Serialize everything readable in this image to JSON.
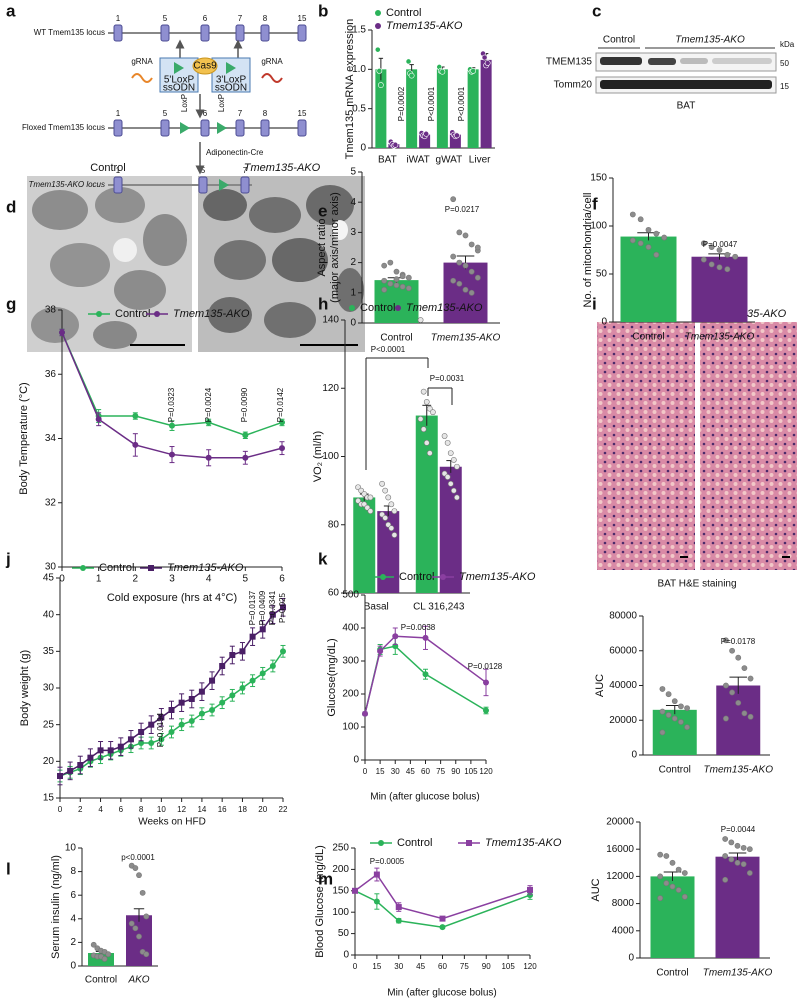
{
  "panel_labels": [
    "a",
    "b",
    "c",
    "d",
    "e",
    "f",
    "g",
    "h",
    "i",
    "j",
    "k",
    "l",
    "m"
  ],
  "diagram": {
    "wt_label": "WT Tmem135 locus",
    "wt_exons": [
      "1",
      "5",
      "6",
      "7",
      "8",
      "15"
    ],
    "grna_left": "gRNA",
    "grna_right": "gRNA",
    "cas9": "Cas9",
    "left_oligo": [
      "5'LoxP",
      "ssODN"
    ],
    "right_oligo": [
      "3'LoxP",
      "ssODN"
    ],
    "floxed_label": "Floxed Tmem135 locus",
    "floxed_exons": [
      "1",
      "5",
      "6",
      "7",
      "8",
      "15"
    ],
    "loxp": [
      "LoxP",
      "LoxP"
    ],
    "cre": "Adiponectin-Cre",
    "ako_label": "Tmem135-AKO locus",
    "ako_exons": [
      "1",
      "5",
      "7"
    ]
  },
  "blot": {
    "groups": [
      "Control",
      "Tmem135-AKO"
    ],
    "proteins": [
      "TMEM135",
      "Tomm20"
    ],
    "unit": "kDa",
    "markers": [
      "50",
      "15"
    ],
    "tissue": "BAT"
  },
  "em_images": {
    "labels": [
      "Control",
      "Tmem135-AKO"
    ]
  },
  "histology": {
    "labels": [
      "Control",
      "Tmem135-AKO"
    ],
    "caption": "BAT H&E staining"
  },
  "chart_data": [
    {
      "type": "bar",
      "ylabel": "Tmem135 mRNA expression",
      "categories": [
        "BAT",
        "iWAT",
        "gWAT",
        "Liver"
      ],
      "ylim": [
        0,
        1.5
      ],
      "yticks": [
        0,
        0.5,
        {
          "value": 1,
          "label": "1.0"
        },
        1.5
      ],
      "series": [
        {
          "name": "Control",
          "color": "#2bb35a",
          "values": [
            1.0,
            1.0,
            1.0,
            1.0
          ],
          "errors": [
            0.14,
            0.06,
            0.03,
            0.02
          ],
          "points": [
            [
              1.25,
              0.98,
              0.8
            ],
            [
              1.1,
              0.95,
              0.92
            ],
            [
              1.03,
              0.98,
              0.97
            ],
            [
              1.0,
              0.97,
              0.98
            ]
          ]
        },
        {
          "name": "Tmem135-AKO",
          "color": "#6b2d86",
          "values": [
            0.05,
            0.17,
            0.17,
            1.12
          ],
          "errors": [
            0.02,
            0.02,
            0.02,
            0.08
          ],
          "points": [
            [
              0.08,
              0.05,
              0.03,
              0.04
            ],
            [
              0.19,
              0.16,
              0.15,
              0.18
            ],
            [
              0.2,
              0.17,
              0.15,
              0.16
            ],
            [
              1.2,
              1.15,
              1.05,
              1.08
            ]
          ]
        }
      ],
      "annotations": [
        "P=0.0002",
        "P<0.0001",
        "P<0.0001"
      ]
    },
    {
      "type": "bar",
      "ylabel": [
        "Aspect ratio",
        "(major axis/minor axis)"
      ],
      "categories": [
        "Control",
        "Tmem135-AKO"
      ],
      "colors": [
        "#2bb35a",
        "#6b2d86"
      ],
      "point_color": "#8c8c8c",
      "values": [
        1.42,
        2.0
      ],
      "errors": [
        0.08,
        0.22
      ],
      "points": [
        [
          1.9,
          2.0,
          1.7,
          1.6,
          1.5,
          1.4,
          1.3,
          1.25,
          1.2,
          1.15,
          1.1,
          1.3,
          1.45,
          1.55
        ],
        [
          4.1,
          3.0,
          2.9,
          2.6,
          2.4,
          2.2,
          2.0,
          1.9,
          1.7,
          1.5,
          1.4,
          1.3,
          1.1,
          1.0,
          2.5
        ]
      ],
      "ylim": [
        0,
        5
      ],
      "yticks": [
        0,
        1,
        2,
        3,
        4,
        5
      ],
      "annotations": [
        "P=0.0217"
      ]
    },
    {
      "type": "bar",
      "ylabel": "No. of mitochondria/cell",
      "categories": [
        "Control",
        "Tmem135-AKO"
      ],
      "colors": [
        "#2bb35a",
        "#6b2d86"
      ],
      "point_color": "#8c8c8c",
      "values": [
        89,
        68
      ],
      "errors": [
        4,
        3
      ],
      "points": [
        [
          112,
          107,
          96,
          92,
          88,
          85,
          82,
          78,
          70
        ],
        [
          82,
          78,
          75,
          70,
          68,
          65,
          60,
          57,
          55
        ]
      ],
      "ylim": [
        0,
        150
      ],
      "yticks": [
        0,
        50,
        100,
        150
      ],
      "annotations": [
        "P=0.0047"
      ]
    },
    {
      "type": "line",
      "ylabel": "Body Temperature (°C)",
      "xlabel": "Cold exposure (hrs at 4°C)",
      "x": [
        0,
        1,
        2,
        3,
        4,
        5,
        6
      ],
      "xlim": [
        0,
        6
      ],
      "xticks": [
        0,
        1,
        2,
        3,
        4,
        5,
        6
      ],
      "ylim": [
        30,
        38
      ],
      "yticks": [
        30,
        32,
        34,
        36,
        38
      ],
      "series": [
        {
          "name": "Control",
          "color": "#2bb35a",
          "marker": "circle",
          "values": [
            37.3,
            34.7,
            34.7,
            34.4,
            34.5,
            34.1,
            34.5
          ],
          "errors": [
            0.1,
            0.2,
            0.1,
            0.15,
            0.1,
            0.1,
            0.1
          ]
        },
        {
          "name": "Tmem135-AKO",
          "color": "#6b2d86",
          "marker": "circle",
          "values": [
            37.3,
            34.6,
            33.8,
            33.5,
            33.4,
            33.4,
            33.7
          ],
          "errors": [
            0.1,
            0.2,
            0.35,
            0.25,
            0.25,
            0.2,
            0.2
          ]
        }
      ],
      "annotations": [
        "P=0.0323",
        "P=0.0024",
        "P=0.0090",
        "P=0.0142"
      ]
    },
    {
      "type": "bar",
      "ylabel": "VO₂ (ml/h)",
      "categories": [
        "Basal",
        "CL 316,243"
      ],
      "point_color": "#e6e6e6",
      "ylim": [
        60,
        140
      ],
      "yticks": [
        60,
        80,
        100,
        120,
        140
      ],
      "series": [
        {
          "name": "Control",
          "color": "#2bb35a",
          "values": [
            88,
            112
          ],
          "errors": [
            1,
            3
          ],
          "points": [
            [
              91,
              90,
              89,
              88,
              88,
              87,
              86,
              86,
              85,
              84
            ],
            [
              140,
              119,
              116,
              114,
              113,
              111,
              108,
              104,
              101
            ]
          ]
        },
        {
          "name": "Tmem135-AKO",
          "color": "#6b2d86",
          "values": [
            84,
            97
          ],
          "errors": [
            1.5,
            1.8
          ],
          "points": [
            [
              92,
              90,
              88,
              86,
              84,
              83,
              82,
              80,
              79,
              77
            ],
            [
              106,
              104,
              101,
              99,
              97,
              95,
              94,
              92,
              90,
              88
            ]
          ]
        }
      ],
      "annotations": [
        "P<0.0001",
        "P=0.0031"
      ]
    },
    {
      "type": "line",
      "ylabel": "Body weight  (g)",
      "xlabel": "Weeks on HFD",
      "x": [
        0,
        1,
        2,
        3,
        4,
        5,
        6,
        7,
        8,
        9,
        10,
        11,
        12,
        13,
        14,
        15,
        16,
        17,
        18,
        19,
        20,
        21,
        22
      ],
      "xlim": [
        0,
        22
      ],
      "xticks": [
        0,
        2,
        4,
        6,
        8,
        10,
        12,
        14,
        16,
        18,
        20,
        22
      ],
      "ylim": [
        15,
        45
      ],
      "yticks": [
        15,
        20,
        25,
        30,
        35,
        40,
        45
      ],
      "series": [
        {
          "name": "Control",
          "color": "#2bb35a",
          "marker": "circle",
          "values": [
            18,
            18.5,
            19,
            20,
            20.5,
            21,
            21.5,
            22,
            22.5,
            22.5,
            23,
            24,
            25,
            25.5,
            26.5,
            27,
            28,
            29,
            30,
            31,
            32,
            33,
            35
          ],
          "errors": [
            0.8,
            0.8,
            0.8,
            0.8,
            0.8,
            0.8,
            0.8,
            0.8,
            0.8,
            0.8,
            0.8,
            0.8,
            0.8,
            0.8,
            0.8,
            0.8,
            0.8,
            0.8,
            0.8,
            0.8,
            0.8,
            0.8,
            0.8
          ]
        },
        {
          "name": "Tmem135-AKO",
          "color": "#4a1f66",
          "marker": "square",
          "values": [
            18,
            18.7,
            19.5,
            20.5,
            21.5,
            21.5,
            22,
            23,
            24,
            25,
            26,
            27,
            28,
            28.5,
            29.5,
            31,
            33,
            34.5,
            35,
            37,
            38,
            40,
            41
          ],
          "errors": [
            1.2,
            1.2,
            1.2,
            1.2,
            1.2,
            1.2,
            1.2,
            1.2,
            1.2,
            1.2,
            1.2,
            1.2,
            1.2,
            1.2,
            1.2,
            1.2,
            1.2,
            1.2,
            1.2,
            1.2,
            1.2,
            1.2,
            1.2
          ]
        }
      ],
      "annotations": [
        "P=0.0194",
        "P=0.0137",
        "P=0.0409",
        "P=0.0341",
        "P=0.025"
      ]
    },
    {
      "type": "line",
      "ylabel": "Glucose(mg/dL)",
      "xlabel": "Min (after glucose bolus)",
      "x": [
        0,
        15,
        30,
        60,
        120
      ],
      "xlim": [
        0,
        120
      ],
      "xticks": [
        0,
        15,
        30,
        45,
        60,
        75,
        90,
        105,
        120
      ],
      "ylim": [
        0,
        500
      ],
      "yticks": [
        0,
        100,
        200,
        300,
        400,
        500
      ],
      "series": [
        {
          "name": "Control",
          "color": "#2bb35a",
          "marker": "circle",
          "values": [
            140,
            335,
            345,
            260,
            150
          ],
          "errors": [
            5,
            15,
            25,
            15,
            10
          ]
        },
        {
          "name": "Tmem135-AKO",
          "color": "#8a3fa0",
          "marker": "circle",
          "values": [
            140,
            330,
            375,
            370,
            235
          ],
          "errors": [
            5,
            15,
            25,
            35,
            40
          ]
        }
      ],
      "annotations": [
        "P=0.0038",
        "P=0.0128"
      ]
    },
    {
      "type": "bar",
      "ylabel": "AUC",
      "categories": [
        "Control",
        "Tmem135-AKO"
      ],
      "colors": [
        "#2bb35a",
        "#6b2d86"
      ],
      "point_color": "#8c8c8c",
      "values": [
        26000,
        40000
      ],
      "errors": [
        2500,
        4800
      ],
      "points": [
        [
          38000,
          35000,
          31000,
          28000,
          27000,
          25000,
          23000,
          21000,
          19000,
          16000,
          13000
        ],
        [
          66000,
          60000,
          56000,
          50000,
          44000,
          40000,
          36000,
          30000,
          24000,
          22000,
          21000
        ]
      ],
      "ylim": [
        0,
        80000
      ],
      "yticks": [
        0,
        20000,
        40000,
        60000,
        80000
      ],
      "annotations": [
        "P=0.0178"
      ]
    },
    {
      "type": "bar",
      "ylabel": "Serum insulin (ng/ml)",
      "categories": [
        "Control",
        "AKO"
      ],
      "colors": [
        "#2bb35a",
        "#6b2d86"
      ],
      "point_color": "#8c8c8c",
      "values": [
        1.1,
        4.3
      ],
      "errors": [
        0.13,
        0.55
      ],
      "points": [
        [
          1.8,
          1.5,
          1.3,
          1.2,
          1.0,
          0.9,
          0.8,
          0.8,
          0.6
        ],
        [
          8.5,
          8.3,
          7.7,
          6.2,
          4.2,
          3.6,
          3.2,
          2.5,
          1.2,
          1.0
        ]
      ],
      "ylim": [
        0,
        10
      ],
      "yticks": [
        0,
        2,
        4,
        6,
        8,
        10
      ],
      "annotations": [
        "p<0.0001"
      ]
    },
    {
      "type": "line",
      "ylabel": "Blood Glucose (mg/dL)",
      "xlabel": "Min (after glucose bolus)",
      "x": [
        0,
        15,
        30,
        60,
        120
      ],
      "xlim": [
        0,
        120
      ],
      "xticks": [
        0,
        15,
        30,
        45,
        60,
        75,
        90,
        105,
        120
      ],
      "ylim": [
        0,
        250
      ],
      "yticks": [
        0,
        50,
        100,
        150,
        200,
        250
      ],
      "series": [
        {
          "name": "Control",
          "color": "#2bb35a",
          "marker": "circle",
          "values": [
            150,
            125,
            80,
            65,
            140
          ],
          "errors": [
            5,
            18,
            5,
            3,
            10
          ]
        },
        {
          "name": "Tmem135-AKO",
          "color": "#8a3fa0",
          "marker": "square",
          "values": [
            150,
            188,
            112,
            85,
            152
          ],
          "errors": [
            5,
            15,
            10,
            4,
            10
          ]
        }
      ],
      "annotations": [
        "P=0.0005"
      ]
    },
    {
      "type": "bar",
      "ylabel": "AUC",
      "categories": [
        "Control",
        "Tmem135-AKO"
      ],
      "colors": [
        "#2bb35a",
        "#6b2d86"
      ],
      "point_color": "#8c8c8c",
      "values": [
        12000,
        14900
      ],
      "errors": [
        650,
        550
      ],
      "points": [
        [
          15200,
          15000,
          14000,
          13000,
          12500,
          12000,
          11000,
          10500,
          10000,
          9000,
          8800
        ],
        [
          17500,
          17000,
          16500,
          16200,
          16000,
          15000,
          14500,
          14000,
          13800,
          12500,
          11500
        ]
      ],
      "ylim": [
        0,
        20000
      ],
      "yticks": [
        0,
        4000,
        8000,
        12000,
        16000,
        20000
      ],
      "annotations": [
        "P=0.0044"
      ]
    }
  ]
}
